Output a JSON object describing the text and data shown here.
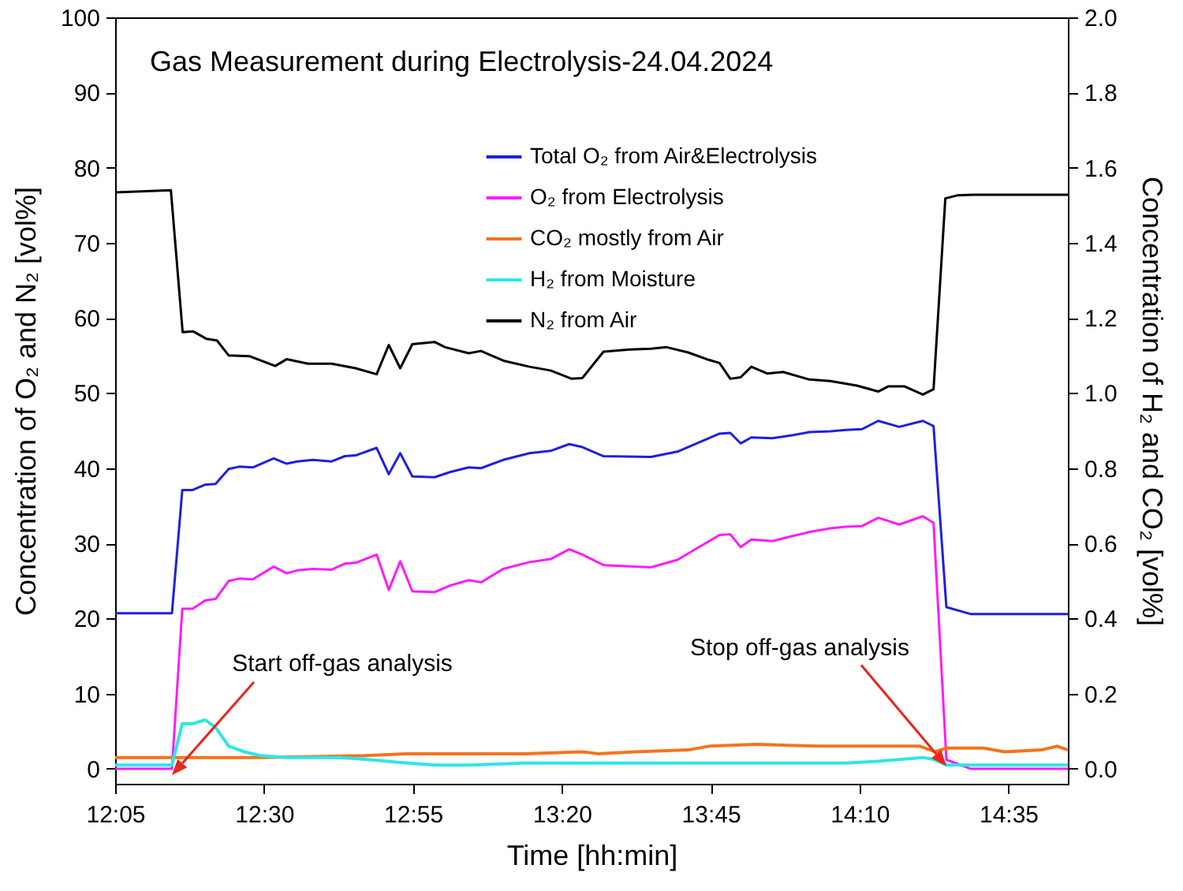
{
  "chart_data": {
    "type": "line",
    "title": "Gas Measurement during Electrolysis-24.04.2024",
    "xlabel": "Time [hh:min]",
    "ylabel": "Concentration of O₂ and N₂ [vol%]",
    "y2label": "Concentration of H₂ and CO₂ [vol%]",
    "xlim": [
      12.083,
      14.75
    ],
    "xticks": [
      {
        "value": 12.083,
        "label": "12:05"
      },
      {
        "value": 12.5,
        "label": "12:30"
      },
      {
        "value": 12.9167,
        "label": "12:55"
      },
      {
        "value": 13.3333,
        "label": "13:20"
      },
      {
        "value": 13.75,
        "label": "13:45"
      },
      {
        "value": 14.1667,
        "label": "14:10"
      },
      {
        "value": 14.5833,
        "label": "14:35"
      }
    ],
    "ylim": [
      -2,
      100
    ],
    "yticks": [
      0,
      10,
      20,
      30,
      40,
      50,
      60,
      70,
      80,
      90,
      100
    ],
    "y2lim": [
      -0.04,
      2
    ],
    "y2ticks": [
      {
        "value": 0,
        "label": "0.0"
      },
      0.2,
      0.4,
      0.6,
      0.8,
      {
        "value": 1,
        "label": "1.0"
      },
      1.2,
      1.4,
      1.6,
      1.8,
      {
        "value": 2,
        "label": "2.0"
      }
    ],
    "legend": "top right",
    "grid": false,
    "series": [
      {
        "name": "Total O₂ from Air&Electrolysis",
        "color": "#1f1fe0",
        "x": [
          12.083,
          12.242,
          12.271,
          12.3,
          12.335,
          12.364,
          12.401,
          12.43,
          12.468,
          12.527,
          12.563,
          12.593,
          12.637,
          12.689,
          12.726,
          12.756,
          12.815,
          12.849,
          12.881,
          12.915,
          12.977,
          13.022,
          13.073,
          13.107,
          13.169,
          13.243,
          13.302,
          13.354,
          13.391,
          13.45,
          13.583,
          13.657,
          13.775,
          13.805,
          13.834,
          13.864,
          13.923,
          13.982,
          14.026,
          14.085,
          14.129,
          14.174,
          14.219,
          14.278,
          14.344,
          14.374,
          14.41,
          14.477,
          14.75
        ],
        "values": [
          20.7,
          20.7,
          37.1,
          37.1,
          37.8,
          37.9,
          39.9,
          40.2,
          40.1,
          41.3,
          40.6,
          40.9,
          41.1,
          40.9,
          41.6,
          41.7,
          42.7,
          39.2,
          42.0,
          38.9,
          38.8,
          39.5,
          40.1,
          40.0,
          41.1,
          42.0,
          42.3,
          43.2,
          42.8,
          41.6,
          41.5,
          42.2,
          44.6,
          44.7,
          43.3,
          44.1,
          44.0,
          44.4,
          44.8,
          44.9,
          45.1,
          45.2,
          46.3,
          45.5,
          46.3,
          45.6,
          21.5,
          20.6,
          20.6
        ]
      },
      {
        "name": "O₂ from Electrolysis",
        "color": "#ff1aff",
        "x": [
          12.083,
          12.242,
          12.271,
          12.3,
          12.335,
          12.364,
          12.401,
          12.43,
          12.468,
          12.527,
          12.563,
          12.593,
          12.637,
          12.689,
          12.726,
          12.756,
          12.815,
          12.849,
          12.881,
          12.915,
          12.977,
          13.022,
          13.073,
          13.107,
          13.169,
          13.243,
          13.302,
          13.354,
          13.391,
          13.45,
          13.583,
          13.657,
          13.775,
          13.805,
          13.834,
          13.864,
          13.923,
          13.982,
          14.026,
          14.085,
          14.129,
          14.174,
          14.219,
          14.278,
          14.344,
          14.374,
          14.41,
          14.477,
          14.75
        ],
        "values": [
          0.0,
          0.0,
          21.3,
          21.3,
          22.4,
          22.6,
          25.0,
          25.3,
          25.2,
          26.9,
          26.0,
          26.4,
          26.6,
          26.5,
          27.3,
          27.4,
          28.5,
          23.8,
          27.6,
          23.6,
          23.5,
          24.4,
          25.1,
          24.8,
          26.6,
          27.5,
          27.9,
          29.2,
          28.5,
          27.1,
          26.8,
          27.8,
          31.1,
          31.2,
          29.5,
          30.5,
          30.3,
          31.0,
          31.5,
          32.0,
          32.2,
          32.3,
          33.4,
          32.5,
          33.6,
          32.7,
          1.2,
          0.0,
          0.0
        ]
      },
      {
        "name": "CO₂ mostly from Air",
        "color": "#f5731e",
        "axis": "y2",
        "x": [
          12.083,
          12.49,
          12.785,
          12.903,
          13.228,
          13.391,
          13.435,
          13.538,
          13.687,
          13.746,
          13.878,
          14.055,
          14.336,
          14.378,
          14.41,
          14.514,
          14.573,
          14.676,
          14.72,
          14.75
        ],
        "values": [
          0.03,
          0.03,
          0.035,
          0.04,
          0.04,
          0.045,
          0.04,
          0.045,
          0.05,
          0.06,
          0.065,
          0.06,
          0.06,
          0.045,
          0.055,
          0.055,
          0.045,
          0.05,
          0.06,
          0.05
        ]
      },
      {
        "name": "H₂ from Moisture",
        "color": "#2ee6e6",
        "axis": "y2",
        "x": [
          12.083,
          12.242,
          12.271,
          12.3,
          12.335,
          12.364,
          12.401,
          12.445,
          12.49,
          12.563,
          12.711,
          12.785,
          12.903,
          12.977,
          13.081,
          13.228,
          13.435,
          13.538,
          13.687,
          13.834,
          13.982,
          14.129,
          14.219,
          14.344,
          14.374,
          14.41,
          14.477,
          14.75
        ],
        "values": [
          0.01,
          0.01,
          0.12,
          0.12,
          0.13,
          0.11,
          0.06,
          0.045,
          0.035,
          0.03,
          0.03,
          0.025,
          0.015,
          0.01,
          0.01,
          0.015,
          0.015,
          0.015,
          0.015,
          0.015,
          0.015,
          0.015,
          0.02,
          0.03,
          0.025,
          0.01,
          0.01,
          0.01
        ]
      },
      {
        "name": "N₂ from Air",
        "color": "#000000",
        "x": [
          12.083,
          12.239,
          12.272,
          12.302,
          12.339,
          12.368,
          12.401,
          12.46,
          12.531,
          12.563,
          12.623,
          12.689,
          12.756,
          12.815,
          12.849,
          12.881,
          12.915,
          12.977,
          13.007,
          13.073,
          13.107,
          13.17,
          13.243,
          13.302,
          13.361,
          13.391,
          13.45,
          13.524,
          13.583,
          13.627,
          13.687,
          13.746,
          13.775,
          13.805,
          13.834,
          13.864,
          13.908,
          13.953,
          14.026,
          14.085,
          14.159,
          14.219,
          14.248,
          14.292,
          14.344,
          14.374,
          14.407,
          14.44,
          14.485,
          14.75
        ],
        "values": [
          76.7,
          77.0,
          58.1,
          58.2,
          57.2,
          57.0,
          55.0,
          54.9,
          53.6,
          54.5,
          53.9,
          53.9,
          53.3,
          52.5,
          56.4,
          53.3,
          56.5,
          56.8,
          56.1,
          55.3,
          55.6,
          54.3,
          53.5,
          53.0,
          51.9,
          52.0,
          55.5,
          55.8,
          55.9,
          56.1,
          55.4,
          54.4,
          54.0,
          51.9,
          52.1,
          53.5,
          52.6,
          52.8,
          51.8,
          51.6,
          51.0,
          50.2,
          50.9,
          50.9,
          49.8,
          50.5,
          75.9,
          76.3,
          76.4,
          76.4
        ]
      }
    ],
    "annotations": [
      {
        "text": "Start off-gas analysis",
        "x": 12.242,
        "y": 0.0
      },
      {
        "text": "Stop off-gas analysis",
        "x": 14.41,
        "y": 1.2
      }
    ]
  }
}
